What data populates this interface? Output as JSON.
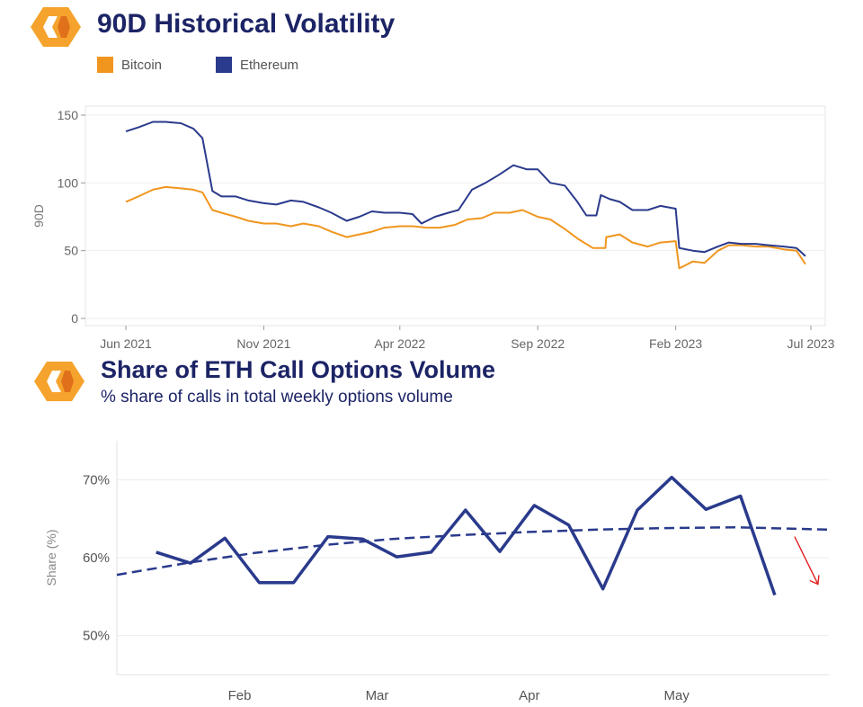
{
  "chart_data": [
    {
      "type": "line",
      "title": "90D Historical Volatility",
      "ylabel": "90D",
      "xlabel": "",
      "ylim": [
        0,
        150
      ],
      "y_ticks": [
        0,
        50,
        100,
        150
      ],
      "x_tick_labels": [
        "Jun 2021",
        "Nov 2021",
        "Apr 2022",
        "Sep 2022",
        "Feb 2023",
        "Jul 2023"
      ],
      "x_tick_dates": [
        "2021-06-01",
        "2021-11-01",
        "2022-04-01",
        "2022-09-01",
        "2023-02-01",
        "2023-07-01"
      ],
      "xlim": [
        "2021-06-01",
        "2023-07-01"
      ],
      "grid": true,
      "legend": "top-left",
      "series": [
        {
          "name": "Bitcoin",
          "color": "#f0961e",
          "points": [
            [
              "2021-06-01",
              86
            ],
            [
              "2021-06-15",
              90
            ],
            [
              "2021-07-01",
              95
            ],
            [
              "2021-07-15",
              97
            ],
            [
              "2021-08-01",
              96
            ],
            [
              "2021-08-15",
              95
            ],
            [
              "2021-08-25",
              93
            ],
            [
              "2021-09-05",
              80
            ],
            [
              "2021-09-15",
              78
            ],
            [
              "2021-10-01",
              75
            ],
            [
              "2021-10-15",
              72
            ],
            [
              "2021-11-01",
              70
            ],
            [
              "2021-11-15",
              70
            ],
            [
              "2021-12-01",
              68
            ],
            [
              "2021-12-15",
              70
            ],
            [
              "2022-01-01",
              68
            ],
            [
              "2022-01-15",
              64
            ],
            [
              "2022-02-01",
              60
            ],
            [
              "2022-02-15",
              62
            ],
            [
              "2022-03-01",
              64
            ],
            [
              "2022-03-15",
              67
            ],
            [
              "2022-04-01",
              68
            ],
            [
              "2022-04-15",
              68
            ],
            [
              "2022-05-01",
              67
            ],
            [
              "2022-05-15",
              67
            ],
            [
              "2022-06-01",
              69
            ],
            [
              "2022-06-15",
              73
            ],
            [
              "2022-07-01",
              74
            ],
            [
              "2022-07-15",
              78
            ],
            [
              "2022-08-01",
              78
            ],
            [
              "2022-08-15",
              80
            ],
            [
              "2022-09-01",
              75
            ],
            [
              "2022-09-15",
              73
            ],
            [
              "2022-10-01",
              66
            ],
            [
              "2022-10-15",
              59
            ],
            [
              "2022-11-01",
              52
            ],
            [
              "2022-11-15",
              52
            ],
            [
              "2022-11-16",
              60
            ],
            [
              "2022-12-01",
              62
            ],
            [
              "2022-12-15",
              56
            ],
            [
              "2023-01-01",
              53
            ],
            [
              "2023-01-15",
              56
            ],
            [
              "2023-02-01",
              57
            ],
            [
              "2023-02-05",
              37
            ],
            [
              "2023-02-20",
              42
            ],
            [
              "2023-03-05",
              41
            ],
            [
              "2023-03-20",
              50
            ],
            [
              "2023-04-01",
              54
            ],
            [
              "2023-04-15",
              54
            ],
            [
              "2023-05-01",
              53
            ],
            [
              "2023-05-15",
              53
            ],
            [
              "2023-06-01",
              51
            ],
            [
              "2023-06-15",
              50
            ],
            [
              "2023-06-25",
              40
            ]
          ]
        },
        {
          "name": "Ethereum",
          "color": "#2a3a8c",
          "points": [
            [
              "2021-06-01",
              138
            ],
            [
              "2021-06-15",
              141
            ],
            [
              "2021-07-01",
              145
            ],
            [
              "2021-07-15",
              145
            ],
            [
              "2021-08-01",
              144
            ],
            [
              "2021-08-15",
              140
            ],
            [
              "2021-08-25",
              133
            ],
            [
              "2021-09-05",
              94
            ],
            [
              "2021-09-15",
              90
            ],
            [
              "2021-10-01",
              90
            ],
            [
              "2021-10-15",
              87
            ],
            [
              "2021-11-01",
              85
            ],
            [
              "2021-11-15",
              84
            ],
            [
              "2021-12-01",
              87
            ],
            [
              "2021-12-15",
              86
            ],
            [
              "2022-01-01",
              82
            ],
            [
              "2022-01-15",
              78
            ],
            [
              "2022-02-01",
              72
            ],
            [
              "2022-02-15",
              75
            ],
            [
              "2022-03-01",
              79
            ],
            [
              "2022-03-15",
              78
            ],
            [
              "2022-04-01",
              78
            ],
            [
              "2022-04-15",
              77
            ],
            [
              "2022-04-25",
              70
            ],
            [
              "2022-05-10",
              75
            ],
            [
              "2022-05-25",
              78
            ],
            [
              "2022-06-05",
              80
            ],
            [
              "2022-06-20",
              95
            ],
            [
              "2022-07-05",
              100
            ],
            [
              "2022-07-20",
              106
            ],
            [
              "2022-08-05",
              113
            ],
            [
              "2022-08-20",
              110
            ],
            [
              "2022-09-01",
              110
            ],
            [
              "2022-09-15",
              100
            ],
            [
              "2022-10-01",
              98
            ],
            [
              "2022-10-15",
              86
            ],
            [
              "2022-10-25",
              76
            ],
            [
              "2022-11-05",
              76
            ],
            [
              "2022-11-10",
              91
            ],
            [
              "2022-11-20",
              88
            ],
            [
              "2022-12-01",
              86
            ],
            [
              "2022-12-15",
              80
            ],
            [
              "2023-01-01",
              80
            ],
            [
              "2023-01-15",
              83
            ],
            [
              "2023-02-01",
              81
            ],
            [
              "2023-02-05",
              52
            ],
            [
              "2023-02-20",
              50
            ],
            [
              "2023-03-05",
              49
            ],
            [
              "2023-03-20",
              53
            ],
            [
              "2023-04-01",
              56
            ],
            [
              "2023-04-15",
              55
            ],
            [
              "2023-05-01",
              55
            ],
            [
              "2023-05-15",
              54
            ],
            [
              "2023-06-01",
              53
            ],
            [
              "2023-06-15",
              52
            ],
            [
              "2023-06-25",
              46
            ]
          ]
        }
      ]
    },
    {
      "type": "line",
      "title": "Share of ETH Call Options Volume",
      "subtitle": "% share of calls in total weekly options volume",
      "ylabel": "Share (%)",
      "xlabel": "",
      "ylim": [
        45,
        75
      ],
      "y_ticks": [
        50,
        60,
        70
      ],
      "y_tick_labels": [
        "50%",
        "60%",
        "70%"
      ],
      "x_tick_labels": [
        "Feb",
        "Mar",
        "Apr",
        "May"
      ],
      "x_tick_dates": [
        "2023-02-01",
        "2023-03-01",
        "2023-04-01",
        "2023-05-01"
      ],
      "xlim": [
        "2023-01-07",
        "2023-06-01"
      ],
      "grid": true,
      "series": [
        {
          "color": "#2a3a8c",
          "points": [
            [
              "2023-01-15",
              60.7
            ],
            [
              "2023-01-22",
              59.3
            ],
            [
              "2023-01-29",
              62.5
            ],
            [
              "2023-02-05",
              56.8
            ],
            [
              "2023-02-12",
              56.8
            ],
            [
              "2023-02-19",
              62.7
            ],
            [
              "2023-02-26",
              62.4
            ],
            [
              "2023-03-05",
              60.1
            ],
            [
              "2023-03-12",
              60.7
            ],
            [
              "2023-03-19",
              66.1
            ],
            [
              "2023-03-26",
              60.8
            ],
            [
              "2023-04-02",
              66.7
            ],
            [
              "2023-04-09",
              64.2
            ],
            [
              "2023-04-16",
              56.0
            ],
            [
              "2023-04-23",
              66.1
            ],
            [
              "2023-04-30",
              70.3
            ],
            [
              "2023-05-07",
              66.2
            ],
            [
              "2023-05-14",
              67.9
            ],
            [
              "2023-05-21",
              55.2
            ]
          ]
        },
        {
          "style": "dashed",
          "color": "#2a3a8c",
          "points": [
            [
              "2023-01-07",
              57.8
            ],
            [
              "2023-01-21",
              59.3
            ],
            [
              "2023-02-04",
              60.6
            ],
            [
              "2023-02-18",
              61.6
            ],
            [
              "2023-03-04",
              62.4
            ],
            [
              "2023-03-18",
              62.9
            ],
            [
              "2023-04-01",
              63.3
            ],
            [
              "2023-04-15",
              63.6
            ],
            [
              "2023-04-29",
              63.8
            ],
            [
              "2023-05-13",
              63.9
            ],
            [
              "2023-06-01",
              63.6
            ]
          ]
        }
      ],
      "annotations": [
        {
          "type": "arrow",
          "color": "#e02020",
          "direction": "down"
        }
      ]
    }
  ],
  "theme": {
    "logo_outer": "#f5a32c",
    "logo_inner": "#e0701a"
  }
}
